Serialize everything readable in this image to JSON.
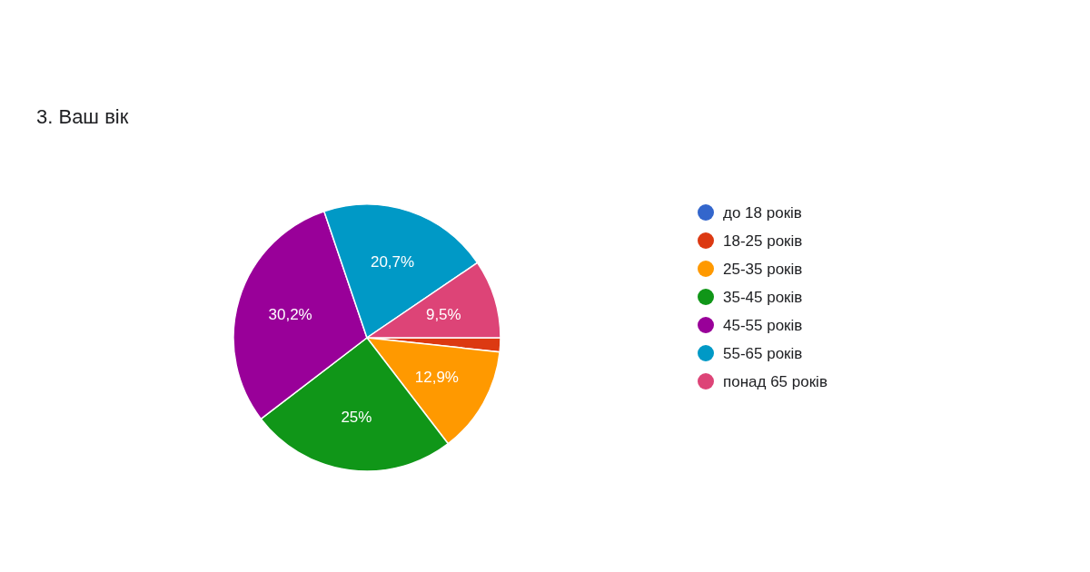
{
  "chart_data": {
    "type": "pie",
    "title": "3. Ваш вік",
    "categories": [
      "до 18 років",
      "18-25 років",
      "25-35 років",
      "35-45 років",
      "45-55 років",
      "55-65 років",
      "понад 65 років"
    ],
    "values": [
      0,
      1.7,
      12.9,
      25,
      30.2,
      20.7,
      9.5
    ],
    "colors": [
      "#3366cc",
      "#dc3912",
      "#ff9900",
      "#109618",
      "#990099",
      "#0099c6",
      "#dd4477"
    ],
    "value_labels": [
      null,
      null,
      "12,9%",
      "25%",
      "30,2%",
      "20,7%",
      "9,5%"
    ],
    "legend": "right"
  }
}
